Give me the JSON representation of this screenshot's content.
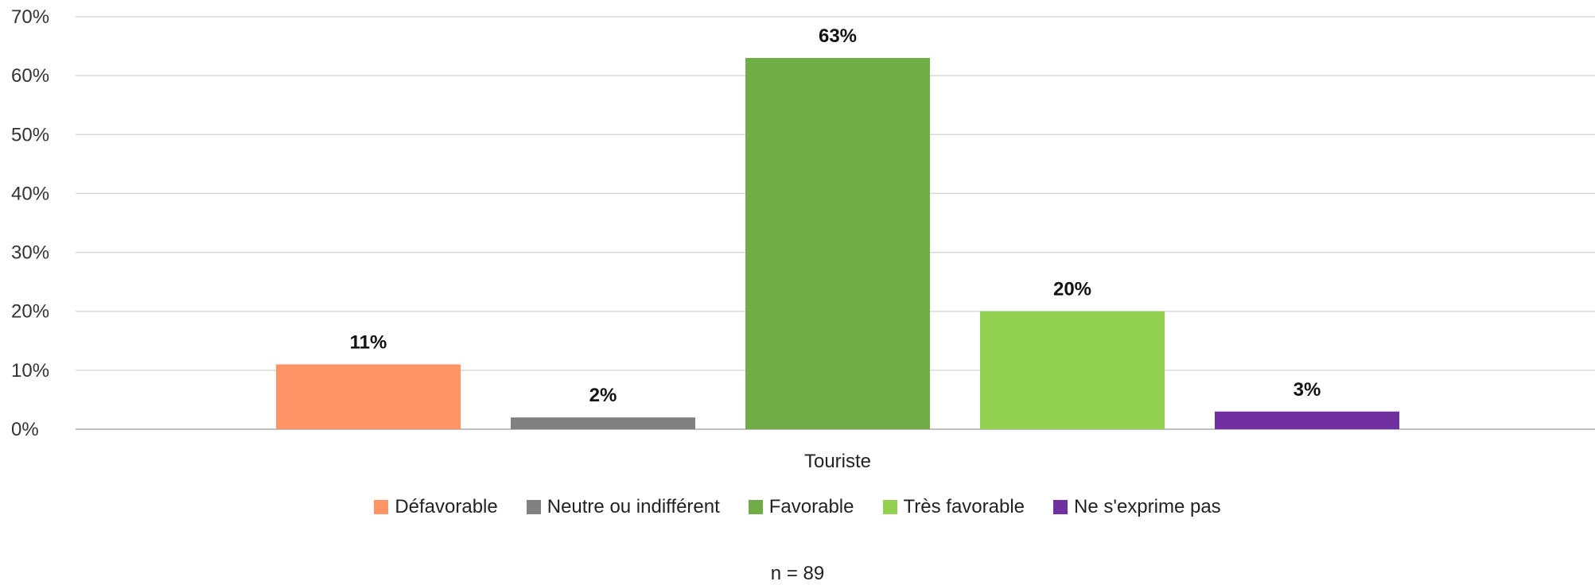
{
  "chart_data": {
    "type": "bar",
    "categories": [
      "Touriste"
    ],
    "series": [
      {
        "name": "Défavorable",
        "values": [
          11
        ],
        "label": "11%",
        "color": "#FF9566"
      },
      {
        "name": "Neutre ou indifférent",
        "values": [
          2
        ],
        "label": "2%",
        "color": "#808080"
      },
      {
        "name": "Favorable",
        "values": [
          63
        ],
        "label": "63%",
        "color": "#70AD47"
      },
      {
        "name": "Très favorable",
        "values": [
          20
        ],
        "label": "20%",
        "color": "#92D050"
      },
      {
        "name": "Ne s'exprime pas",
        "values": [
          3
        ],
        "label": "3%",
        "color": "#7030A0"
      }
    ],
    "yticks": [
      "0%",
      "10%",
      "20%",
      "30%",
      "40%",
      "50%",
      "60%",
      "70%"
    ],
    "ylim": [
      0,
      70
    ],
    "grid": true,
    "legend_position": "bottom",
    "note": "n = 89"
  }
}
